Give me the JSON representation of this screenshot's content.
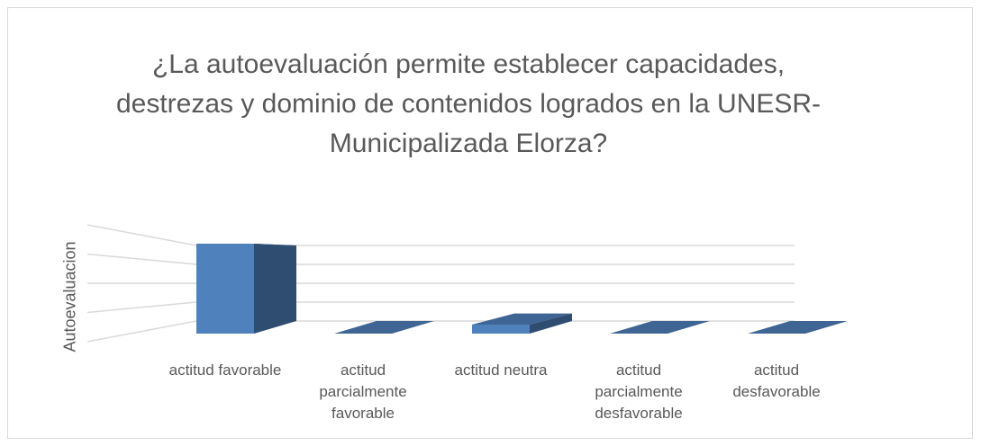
{
  "chart_data": {
    "type": "bar3d",
    "title": "¿La autoevaluación permite establecer capacidades, destrezas y dominio de contenidos logrados en la UNESR-Municipalizada Elorza?",
    "y_label": "Autoevaluacion",
    "categories": [
      "actitud favorable",
      "actitud parcialmente favorable",
      "actitud neutra",
      "actitud parcialmente desfavorable",
      "actitud desfavorable"
    ],
    "values": [
      4,
      0,
      0.4,
      0,
      0
    ],
    "color": "#4f81bd",
    "ylim": [
      0,
      4
    ],
    "yticks": [
      0,
      1,
      2,
      3,
      4
    ],
    "grid": true
  }
}
